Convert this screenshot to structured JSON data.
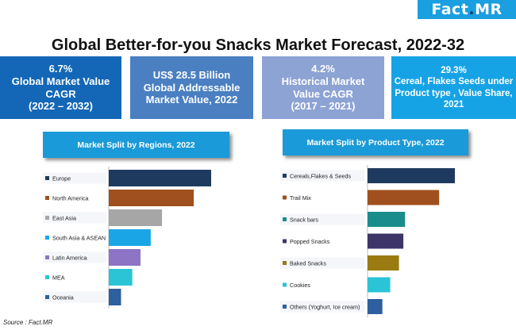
{
  "logo": {
    "fact": "Fact",
    "dot": ".",
    "mr": "MR"
  },
  "title": "Global Better-for-you Snacks Market Forecast, 2022-32",
  "kpis": [
    {
      "value": "6.7%",
      "lines": [
        "Global Market Value",
        "CAGR",
        "(2022 – 2032)"
      ]
    },
    {
      "value": "US$ 28.5 Billion",
      "lines": [
        "Global Addressable",
        "Market Value, 2022"
      ]
    },
    {
      "value": "4.2%",
      "lines": [
        "Historical Market",
        "Value CAGR",
        "(2017 – 2021)"
      ]
    },
    {
      "value": "29.3%",
      "lines": [
        "Cereal, Flakes Seeds under",
        "Product type , Value Share,",
        "2021"
      ]
    }
  ],
  "source": "Source : Fact.MR",
  "chart_data": [
    {
      "type": "bar",
      "orientation": "horizontal",
      "title": "Market Split by Regions, 2022",
      "categories": [
        "Europe",
        "North America",
        "East Asia",
        "South Asia & ASEAN",
        "Latin America",
        "MEA",
        "Oceania"
      ],
      "values": [
        100,
        83,
        52,
        41,
        31,
        23,
        12
      ],
      "colors": [
        "#1f3a5f",
        "#a0501e",
        "#a6a6a6",
        "#1aa6e6",
        "#8d74c4",
        "#2bc4d6",
        "#2e5f9e"
      ],
      "grid": false,
      "legend": "none"
    },
    {
      "type": "bar",
      "orientation": "horizontal",
      "title": "Market Split by Product Type, 2022",
      "categories": [
        "Cereals,Flakes & Seeds",
        "Trail Mix",
        "Snack bars",
        "Popped Snacks",
        "Baked Snacks",
        "Cookies",
        "Others (Yoghurt, Ice cream)"
      ],
      "values": [
        100,
        82,
        43,
        41,
        36,
        26,
        17
      ],
      "colors": [
        "#1f3a5f",
        "#a0501e",
        "#1a8c8c",
        "#3d3468",
        "#9a7b12",
        "#2bc4d6",
        "#2e5f9e"
      ],
      "grid": false,
      "legend": "none"
    }
  ]
}
